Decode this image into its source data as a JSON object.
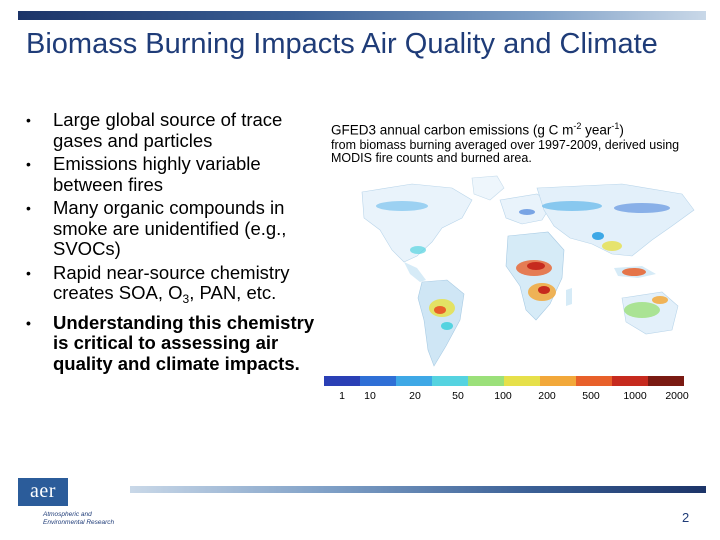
{
  "slide": {
    "title": "Biomass Burning Impacts Air Quality and Climate",
    "bullets": [
      {
        "text": "Large global source of trace gases and particles",
        "bold": false
      },
      {
        "text": "Emissions highly variable between fires",
        "bold": false
      },
      {
        "text": "Many organic compounds in smoke are unidentified (e.g., SVOCs)",
        "bold": false
      },
      {
        "text_before": "Rapid near-source chemistry creates SOA, O",
        "subscript": "3",
        "text_after": ", PAN, etc.",
        "bold": false
      },
      {
        "text": "Understanding this chemistry is critical to assessing air quality and climate impacts.",
        "bold": true
      }
    ],
    "bullet_glyph": "•",
    "caption": {
      "lead": "GFED3 annual carbon emissions (g C m",
      "sup1": "-2",
      "mid": " year",
      "sup2": "-1",
      "close": ")",
      "rest": "from biomass burning averaged over 1997-2009, derived using MODIS fire counts and burned area."
    },
    "colorbar": {
      "colors": [
        "#2a3fb5",
        "#2f6fd6",
        "#3ea8e6",
        "#55d3e0",
        "#9be07a",
        "#e6e04a",
        "#f2a83a",
        "#e8602a",
        "#c62a1e",
        "#7a1a12"
      ],
      "ticks": [
        "1",
        "10",
        "20",
        "50",
        "100",
        "200",
        "500",
        "1000",
        "2000"
      ]
    },
    "logo": {
      "text": "aer",
      "line1": "Atmospheric and",
      "line2": "Environmental Research"
    },
    "page_number": "2",
    "theme": {
      "accent": "#1f3c78",
      "bar_dark": "#1c3468",
      "bar_light": "#c9d8e8"
    }
  }
}
